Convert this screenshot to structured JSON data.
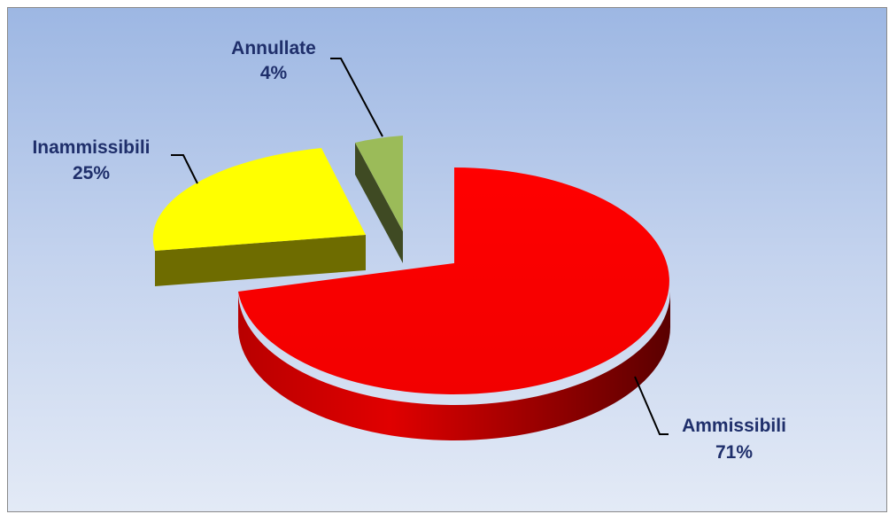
{
  "chart_data": {
    "type": "pie",
    "title": "",
    "slices": [
      {
        "label": "Ammissibili",
        "value": 71,
        "value_label": "71%",
        "color": "#ff0000",
        "exploded": false
      },
      {
        "label": "Inammissibili",
        "value": 25,
        "value_label": "25%",
        "color": "#ffff00",
        "exploded": true
      },
      {
        "label": "Annullate",
        "value": 4,
        "value_label": "4%",
        "color": "#9bbb59",
        "exploded": true
      }
    ],
    "label_color": "#1f2f6b",
    "background": "gradient-blue",
    "style": "3d-exploded"
  }
}
